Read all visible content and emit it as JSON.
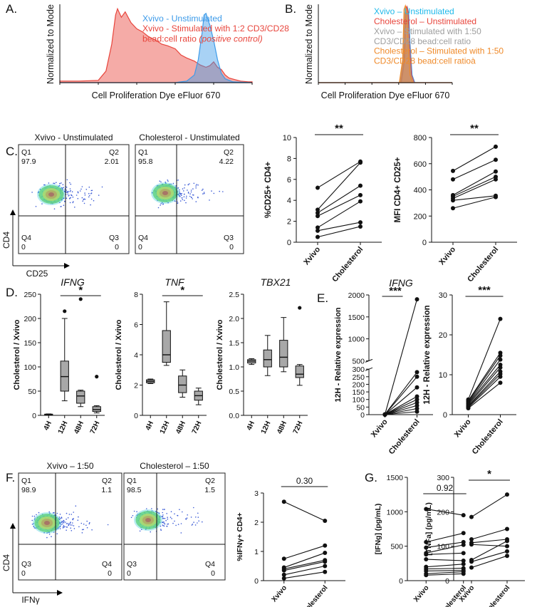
{
  "panel_letters": {
    "A": "A.",
    "B": "B.",
    "C": "C.",
    "D": "D.",
    "E": "E.",
    "F": "F.",
    "G": "G."
  },
  "colors": {
    "xvivo_unstim": "#3d9be9",
    "xvivo_stim": "#e8453c",
    "chol_unstim": "#e8453c",
    "xvivo_stim150": "#9e9e9e",
    "chol_stim150": "#ef8a2a",
    "unstim_text_B": "#1fb9ea",
    "box_fill": "#a8a8a8"
  },
  "chart_data": [
    {
      "id": "A",
      "type": "area",
      "title": "",
      "xlabel": "Cell Proliferation Dye eFluor 670",
      "ylabel": "Normalized to Mode",
      "legend": [
        {
          "text": "Xvivo - Unstimulated",
          "color": "#3d9be9"
        },
        {
          "text": "Xvivo - Stimulated with 1:2 CD3/CD28",
          "color": "#e8453c"
        },
        {
          "text": "bead:cell ratio",
          "italic_suffix": "(positive control)",
          "color": "#e8453c"
        }
      ],
      "x_range": [
        0,
        1
      ],
      "y_range": [
        0,
        1
      ],
      "series": [
        {
          "name": "Xvivo - Stimulated with 1:2 CD3/CD28 bead:cell ratio (positive control)",
          "color": "#e8453c",
          "x": [
            0.0,
            0.1,
            0.2,
            0.24,
            0.27,
            0.29,
            0.3,
            0.32,
            0.34,
            0.37,
            0.4,
            0.43,
            0.46,
            0.5,
            0.53,
            0.56,
            0.6,
            0.63,
            0.66,
            0.7,
            0.73,
            0.76,
            0.78,
            0.8,
            0.82,
            0.84,
            0.86,
            0.88,
            0.91,
            0.94,
            0.98,
            1.0
          ],
          "y": [
            0.02,
            0.02,
            0.03,
            0.15,
            0.5,
            0.88,
            0.96,
            0.85,
            0.92,
            0.78,
            0.7,
            0.66,
            0.6,
            0.55,
            0.5,
            0.48,
            0.44,
            0.36,
            0.32,
            0.28,
            0.23,
            0.2,
            0.22,
            0.27,
            0.2,
            0.17,
            0.1,
            0.06,
            0.04,
            0.02,
            0.01,
            0.01
          ]
        },
        {
          "name": "Xvivo - Unstimulated",
          "color": "#3d9be9",
          "x": [
            0.0,
            0.6,
            0.66,
            0.7,
            0.72,
            0.74,
            0.75,
            0.76,
            0.77,
            0.78,
            0.8,
            0.82,
            0.84,
            0.86,
            0.9,
            1.0
          ],
          "y": [
            0.0,
            0.0,
            0.02,
            0.1,
            0.3,
            0.65,
            0.88,
            0.9,
            0.82,
            0.75,
            0.55,
            0.3,
            0.12,
            0.05,
            0.01,
            0.0
          ]
        }
      ]
    },
    {
      "id": "B",
      "type": "area",
      "xlabel": "Cell Proliferation Dye eFluor 670",
      "ylabel": "Normalized to Mode",
      "legend": [
        {
          "text": "Xvivo – Unstimulated",
          "color": "#1fb9ea"
        },
        {
          "text": "Cholesterol – Unstimulated",
          "color": "#e8453c"
        },
        {
          "text": "Xvivo – Stimulated with 1:50",
          "color": "#9e9e9e"
        },
        {
          "text": "CD3/CD28 bead:cell ratio",
          "color": "#9e9e9e"
        },
        {
          "text": "Cholesterol – Stimulated with 1:50",
          "color": "#ef8a2a"
        },
        {
          "text": "CD3/CD28 bead:cell ratioà",
          "color": "#ef8a2a"
        }
      ],
      "x_range": [
        0,
        1
      ],
      "y_range": [
        0,
        1
      ],
      "series": [
        {
          "name": "Xvivo – Unstimulated",
          "color": "#3d9be9",
          "x": [
            0.0,
            0.62,
            0.645,
            0.655,
            0.665,
            0.675,
            0.685,
            0.7,
            0.72,
            1.0
          ],
          "y": [
            0,
            0,
            0.3,
            0.95,
            0.98,
            0.9,
            0.5,
            0.1,
            0,
            0
          ]
        },
        {
          "name": "Cholesterol – Unstimulated",
          "color": "#e8453c",
          "x": [
            0.0,
            0.615,
            0.64,
            0.65,
            0.66,
            0.67,
            0.68,
            0.695,
            0.715,
            1.0
          ],
          "y": [
            0,
            0,
            0.3,
            0.95,
            0.99,
            0.92,
            0.5,
            0.1,
            0,
            0
          ]
        },
        {
          "name": "Xvivo – Stimulated with 1:50",
          "color": "#9e9e9e",
          "x": [
            0.0,
            0.61,
            0.635,
            0.645,
            0.655,
            0.665,
            0.675,
            0.69,
            0.71,
            1.0
          ],
          "y": [
            0,
            0,
            0.3,
            0.9,
            0.95,
            0.88,
            0.5,
            0.1,
            0,
            0
          ]
        },
        {
          "name": "Cholesterol – Stimulated with 1:50",
          "color": "#ef8a2a",
          "x": [
            0.0,
            0.605,
            0.63,
            0.64,
            0.65,
            0.66,
            0.67,
            0.685,
            0.705,
            1.0
          ],
          "y": [
            0,
            0,
            0.3,
            0.95,
            1.0,
            0.93,
            0.5,
            0.1,
            0,
            0
          ]
        }
      ]
    },
    {
      "id": "C-flow",
      "type": "scatter",
      "xlabel": "CD25",
      "ylabel": "CD4",
      "plots": [
        {
          "title": "Xvivo - Unstimulated",
          "quadrants": {
            "Q1": {
              "label": "Q1",
              "value": "97.9"
            },
            "Q2": {
              "label": "Q2",
              "value": "2.01"
            },
            "Q3": {
              "label": "Q3",
              "value": "0"
            },
            "Q4": {
              "label": "Q4",
              "value": "0"
            }
          }
        },
        {
          "title": "Cholesterol - Unstimulated",
          "quadrants": {
            "Q1": {
              "label": "Q1",
              "value": "95.8"
            },
            "Q2": {
              "label": "Q2",
              "value": "4.22"
            },
            "Q3": {
              "label": "Q3",
              "value": "0"
            },
            "Q4": {
              "label": "Q4",
              "value": "0"
            }
          }
        }
      ]
    },
    {
      "id": "C-pct",
      "type": "line",
      "ylabel": "%CD25+ CD4+",
      "categories": [
        "Xvivo",
        "Cholesterol"
      ],
      "ylim": [
        0,
        10
      ],
      "yticks": [
        "0",
        "2",
        "4",
        "6",
        "8",
        "10"
      ],
      "significance": "**",
      "pairs": [
        [
          5.2,
          7.7
        ],
        [
          3.1,
          7.6
        ],
        [
          2.8,
          5.4
        ],
        [
          2.5,
          4.5
        ],
        [
          1.4,
          3.9
        ],
        [
          1.1,
          1.9
        ],
        [
          0.5,
          1.5
        ]
      ]
    },
    {
      "id": "C-mfi",
      "type": "line",
      "ylabel": "MFI CD4+ CD25+",
      "categories": [
        "Xvivo",
        "Cholesterol"
      ],
      "ylim": [
        0,
        800
      ],
      "yticks": [
        "0",
        "200",
        "400",
        "600",
        "800"
      ],
      "significance": "**",
      "pairs": [
        [
          545,
          730
        ],
        [
          480,
          630
        ],
        [
          360,
          540
        ],
        [
          350,
          500
        ],
        [
          335,
          480
        ],
        [
          320,
          355
        ],
        [
          260,
          345
        ]
      ]
    },
    {
      "id": "D-IFNG",
      "type": "box",
      "title": "IFNG",
      "ylabel": "Cholesterol / Xvivo",
      "categories": [
        "4H",
        "12H",
        "48H",
        "72H"
      ],
      "ylim": [
        0,
        250
      ],
      "yticks": [
        "0",
        "50",
        "100",
        "150",
        "200",
        "250"
      ],
      "significance": "*",
      "sig_span": [
        "12H",
        "72H"
      ],
      "boxes": [
        {
          "min": 1,
          "q1": 1.5,
          "median": 2,
          "q3": 2.5,
          "max": 3,
          "outliers": []
        },
        {
          "min": 30,
          "q1": 50,
          "median": 80,
          "q3": 112,
          "max": 200,
          "outliers": [
            215
          ]
        },
        {
          "min": 18,
          "q1": 25,
          "median": 40,
          "q3": 50,
          "max": 52,
          "outliers": [
            240
          ]
        },
        {
          "min": 5,
          "q1": 8,
          "median": 12,
          "q3": 18,
          "max": 20,
          "outliers": [
            80
          ]
        }
      ]
    },
    {
      "id": "D-TNF",
      "type": "box",
      "title": "TNF",
      "ylabel": "Cholesterol / Xvivo",
      "categories": [
        "4H",
        "12H",
        "48H",
        "72H"
      ],
      "ylim": [
        0,
        8
      ],
      "yticks": [
        "0",
        "2",
        "4",
        "6",
        "8"
      ],
      "significance": "*",
      "sig_span": [
        "12H",
        "72H"
      ],
      "boxes": [
        {
          "min": 2.1,
          "q1": 2.15,
          "median": 2.25,
          "q3": 2.35,
          "max": 2.4,
          "outliers": []
        },
        {
          "min": 3.3,
          "q1": 3.5,
          "median": 4.0,
          "q3": 5.6,
          "max": 7.5,
          "outliers": []
        },
        {
          "min": 1.2,
          "q1": 1.5,
          "median": 2.0,
          "q3": 2.6,
          "max": 3.0,
          "outliers": []
        },
        {
          "min": 0.7,
          "q1": 1.0,
          "median": 1.3,
          "q3": 1.6,
          "max": 1.8,
          "outliers": []
        }
      ]
    },
    {
      "id": "D-TBX21",
      "type": "box",
      "title": "TBX21",
      "ylabel": "Cholesterol / Xvivo",
      "categories": [
        "4H",
        "12H",
        "48H",
        "72H"
      ],
      "ylim": [
        0,
        2.5
      ],
      "yticks": [
        "0.0",
        "0.5",
        "1.0",
        "1.5",
        "2.0",
        "2.5"
      ],
      "boxes": [
        {
          "min": 1.05,
          "q1": 1.08,
          "median": 1.12,
          "q3": 1.15,
          "max": 1.17,
          "outliers": []
        },
        {
          "min": 0.82,
          "q1": 1.0,
          "median": 1.15,
          "q3": 1.35,
          "max": 1.65,
          "outliers": []
        },
        {
          "min": 0.9,
          "q1": 1.0,
          "median": 1.2,
          "q3": 1.55,
          "max": 2.02,
          "outliers": []
        },
        {
          "min": 0.62,
          "q1": 0.78,
          "median": 0.85,
          "q3": 1.02,
          "max": 1.05,
          "outliers": [
            2.22
          ]
        }
      ]
    },
    {
      "id": "E-IFNG",
      "type": "line",
      "title": "IFNG",
      "ylabel": "12H - Relative expression",
      "categories": [
        "Xvivo",
        "Cholesterol"
      ],
      "y_axis_break": true,
      "yticks": [
        "0",
        "50",
        "100",
        "150",
        "200",
        "250",
        "300",
        "500",
        "1000",
        "1500",
        "2000"
      ],
      "significance": "***",
      "pairs": [
        [
          2,
          1900
        ],
        [
          2,
          280
        ],
        [
          1,
          250
        ],
        [
          1,
          180
        ],
        [
          1,
          120
        ],
        [
          0,
          100
        ],
        [
          0,
          80
        ],
        [
          0,
          60
        ],
        [
          0,
          40
        ],
        [
          0,
          20
        ]
      ]
    },
    {
      "id": "E-TNF",
      "type": "line",
      "title": "TNF",
      "ylabel": "12H - Relative expression",
      "categories": [
        "Xvivo",
        "Cholesterol"
      ],
      "ylim": [
        0,
        30
      ],
      "yticks": [
        "0",
        "10",
        "20",
        "30"
      ],
      "significance": "***",
      "pairs": [
        [
          3.8,
          24
        ],
        [
          3.5,
          15.5
        ],
        [
          3.3,
          14.8
        ],
        [
          3.0,
          13.8
        ],
        [
          2.8,
          12.5
        ],
        [
          2.5,
          11.8
        ],
        [
          2.2,
          10.8
        ],
        [
          2.0,
          10.2
        ],
        [
          1.8,
          9.5
        ],
        [
          1.6,
          8.0
        ]
      ]
    },
    {
      "id": "F-flow",
      "type": "scatter",
      "xlabel": "IFNγ",
      "ylabel": "CD4",
      "plots": [
        {
          "title": "Xvivo – 1:50",
          "quadrants": {
            "Q1": {
              "label": "Q1",
              "value": "98.9"
            },
            "Q2": {
              "label": "Q2",
              "value": "1.1"
            },
            "Q3": {
              "label": "Q3",
              "value": "0"
            },
            "Q4": {
              "label": "Q4",
              "value": "0"
            }
          }
        },
        {
          "title": "Cholesterol – 1:50",
          "quadrants": {
            "Q1": {
              "label": "Q1",
              "value": "98.5"
            },
            "Q2": {
              "label": "Q2",
              "value": "1.5"
            },
            "Q3": {
              "label": "Q3",
              "value": "0"
            },
            "Q4": {
              "label": "Q4",
              "value": "0"
            }
          }
        }
      ]
    },
    {
      "id": "F-pct",
      "type": "line",
      "ylabel": "%IFNγ+ CD4+",
      "categories": [
        "Xvivo",
        "Cholesterol"
      ],
      "ylim": [
        0,
        3
      ],
      "yticks": [
        "0",
        "1",
        "2",
        "3"
      ],
      "significance": "0.30",
      "pairs": [
        [
          2.7,
          2.05
        ],
        [
          0.75,
          1.2
        ],
        [
          0.45,
          0.95
        ],
        [
          0.4,
          0.7
        ],
        [
          0.35,
          0.65
        ],
        [
          0.2,
          0.5
        ],
        [
          0.08,
          0.3
        ]
      ]
    },
    {
      "id": "G-IFNg",
      "type": "line",
      "ylabel": "[IFNg] (pg/mL)",
      "categories": [
        "Xvivo",
        "Cholesterol"
      ],
      "ylim": [
        0,
        1500
      ],
      "yticks": [
        "0",
        "500",
        "1000",
        "1500"
      ],
      "significance": "0.92",
      "pairs": [
        [
          1040,
          950
        ],
        [
          560,
          690
        ],
        [
          480,
          560
        ],
        [
          400,
          520
        ],
        [
          380,
          400
        ],
        [
          310,
          290
        ],
        [
          200,
          240
        ],
        [
          170,
          180
        ],
        [
          140,
          150
        ],
        [
          100,
          130
        ],
        [
          80,
          100
        ]
      ]
    },
    {
      "id": "G-TNFa",
      "type": "line",
      "ylabel": "[TNFa] (pg/mL)",
      "categories": [
        "Xvivo",
        "Cholesterol"
      ],
      "ylim": [
        0,
        300
      ],
      "yticks": [
        "0",
        "100",
        "200",
        "300"
      ],
      "significance": "*",
      "pairs": [
        [
          185,
          250
        ],
        [
          120,
          150
        ],
        [
          110,
          120
        ],
        [
          105,
          100
        ],
        [
          60,
          115
        ],
        [
          55,
          85
        ],
        [
          38,
          72
        ]
      ]
    }
  ]
}
